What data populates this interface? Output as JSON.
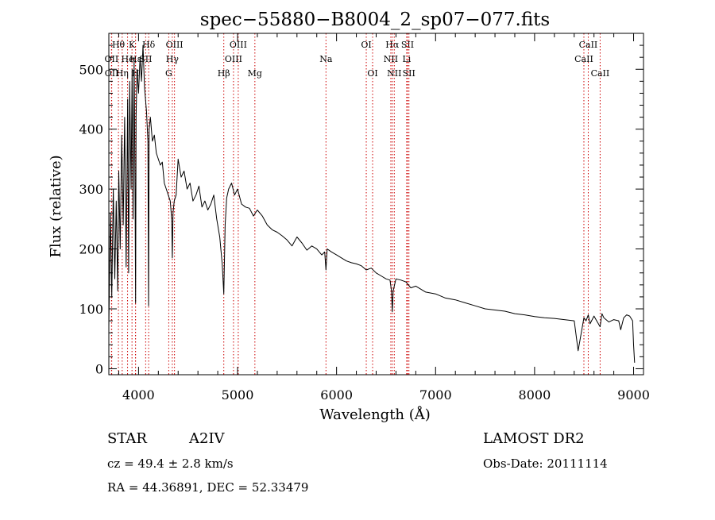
{
  "chart_data": {
    "type": "line",
    "title": "spec−55880−B8004_2_sp07−077.fits",
    "xlabel": "Wavelength (Å)",
    "ylabel": "Flux (relative)",
    "xlim": [
      3700,
      9100
    ],
    "ylim": [
      -10,
      560
    ],
    "xticks": [
      4000,
      5000,
      6000,
      7000,
      8000,
      9000
    ],
    "yticks": [
      0,
      100,
      200,
      300,
      400,
      500
    ],
    "grid": false,
    "series": [
      {
        "color": "#000000",
        "x": [
          3700,
          3715,
          3730,
          3745,
          3760,
          3775,
          3790,
          3800,
          3815,
          3830,
          3845,
          3860,
          3875,
          3890,
          3900,
          3910,
          3925,
          3935,
          3945,
          3955,
          3965,
          3970,
          3975,
          3985,
          4000,
          4015,
          4030,
          4045,
          4060,
          4080,
          4095,
          4101,
          4107,
          4120,
          4140,
          4160,
          4180,
          4200,
          4220,
          4240,
          4260,
          4280,
          4300,
          4320,
          4335,
          4341,
          4348,
          4360,
          4380,
          4400,
          4430,
          4460,
          4490,
          4520,
          4550,
          4580,
          4610,
          4640,
          4670,
          4700,
          4730,
          4760,
          4790,
          4820,
          4845,
          4861,
          4875,
          4890,
          4910,
          4940,
          4970,
          5000,
          5040,
          5080,
          5120,
          5160,
          5200,
          5250,
          5300,
          5350,
          5400,
          5450,
          5500,
          5550,
          5600,
          5650,
          5700,
          5750,
          5800,
          5850,
          5880,
          5893,
          5905,
          5950,
          6000,
          6050,
          6100,
          6150,
          6200,
          6250,
          6300,
          6350,
          6400,
          6450,
          6500,
          6540,
          6555,
          6563,
          6572,
          6600,
          6650,
          6700,
          6750,
          6800,
          6900,
          7000,
          7100,
          7200,
          7300,
          7400,
          7500,
          7600,
          7700,
          7800,
          7900,
          8000,
          8100,
          8200,
          8300,
          8400,
          8440,
          8498,
          8520,
          8542,
          8560,
          8600,
          8620,
          8662,
          8680,
          8700,
          8750,
          8800,
          8850,
          8870,
          8900,
          8930,
          8960,
          8990,
          9000,
          9010
        ],
        "y": [
          70,
          260,
          120,
          300,
          150,
          280,
          130,
          330,
          200,
          390,
          240,
          420,
          170,
          450,
          160,
          480,
          300,
          500,
          250,
          520,
          300,
          110,
          420,
          500,
          460,
          520,
          480,
          540,
          470,
          430,
          380,
          105,
          400,
          420,
          380,
          390,
          360,
          350,
          340,
          345,
          310,
          300,
          290,
          280,
          250,
          185,
          260,
          280,
          290,
          350,
          320,
          330,
          300,
          310,
          280,
          290,
          305,
          270,
          280,
          265,
          275,
          290,
          250,
          220,
          175,
          125,
          240,
          285,
          300,
          310,
          290,
          300,
          275,
          270,
          268,
          255,
          265,
          255,
          240,
          232,
          228,
          222,
          215,
          205,
          220,
          210,
          198,
          205,
          200,
          190,
          195,
          165,
          200,
          195,
          190,
          185,
          180,
          177,
          175,
          172,
          165,
          168,
          160,
          155,
          150,
          148,
          130,
          95,
          130,
          150,
          148,
          145,
          135,
          138,
          128,
          125,
          118,
          115,
          110,
          105,
          100,
          98,
          96,
          92,
          90,
          87,
          85,
          84,
          82,
          80,
          30,
          85,
          80,
          90,
          75,
          88,
          82,
          70,
          92,
          85,
          78,
          82,
          80,
          65,
          85,
          90,
          88,
          80,
          40,
          10
        ]
      }
    ],
    "spectral_lines": [
      {
        "label": "Hθ",
        "x": 3797,
        "row": 1
      },
      {
        "label": "OII",
        "x": 3727,
        "row": 2
      },
      {
        "label": "OII",
        "x": 3729,
        "row": 3
      },
      {
        "label": "He",
        "x": 3889,
        "row": 2
      },
      {
        "label": "Hη",
        "x": 3835,
        "row": 3
      },
      {
        "label": "K",
        "x": 3934,
        "row": 1
      },
      {
        "label": "Hε",
        "x": 3970,
        "row": 2
      },
      {
        "label": "H",
        "x": 3969,
        "row": 3
      },
      {
        "label": "SII",
        "x": 4072,
        "row": 2
      },
      {
        "label": "Hδ",
        "x": 4102,
        "row": 1
      },
      {
        "label": "OIII",
        "x": 4363,
        "row": 1
      },
      {
        "label": "Hγ",
        "x": 4341,
        "row": 2
      },
      {
        "label": "G",
        "x": 4305,
        "row": 3
      },
      {
        "label": "Hβ",
        "x": 4861,
        "row": 3
      },
      {
        "label": "OIII",
        "x": 5007,
        "row": 1
      },
      {
        "label": "OIII",
        "x": 4959,
        "row": 2
      },
      {
        "label": "Mg",
        "x": 5175,
        "row": 3
      },
      {
        "label": "Na",
        "x": 5893,
        "row": 2
      },
      {
        "label": "OI",
        "x": 6300,
        "row": 1
      },
      {
        "label": "OI",
        "x": 6364,
        "row": 3
      },
      {
        "label": "Hα",
        "x": 6563,
        "row": 1
      },
      {
        "label": "NII",
        "x": 6548,
        "row": 2
      },
      {
        "label": "NII",
        "x": 6583,
        "row": 3
      },
      {
        "label": "SII",
        "x": 6717,
        "row": 1
      },
      {
        "label": "Li",
        "x": 6708,
        "row": 2
      },
      {
        "label": "SII",
        "x": 6731,
        "row": 3
      },
      {
        "label": "CaII",
        "x": 8542,
        "row": 1
      },
      {
        "label": "CaII",
        "x": 8498,
        "row": 2
      },
      {
        "label": "CaII",
        "x": 8662,
        "row": 3
      }
    ]
  },
  "info": {
    "class_label": "STAR",
    "subclass": "A2IV",
    "survey": "LAMOST DR2",
    "cz": "cz = 49.4 ± 2.8 km/s",
    "obs_date": "Obs-Date: 20111114",
    "coords": "RA =  44.36891, DEC =  52.33479"
  },
  "colors": {
    "spectrum": "#000000",
    "line_markers": "#cc0000",
    "frame": "#000000",
    "background": "#ffffff"
  }
}
